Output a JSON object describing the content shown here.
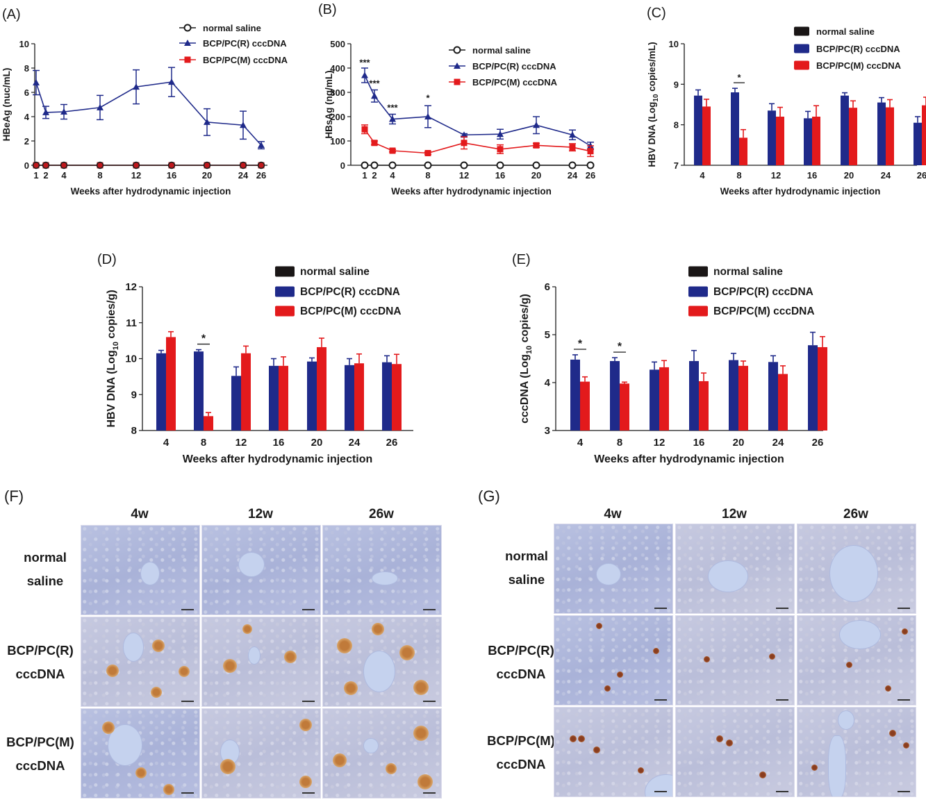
{
  "chart_data": [
    {
      "id": "A",
      "panel_label": "(A)",
      "type": "line",
      "xlabel": "Weeks after hydrodynamic injection",
      "ylabel": "HBeAg (nuc/mL)",
      "ylim": [
        0,
        10
      ],
      "yticks": [
        "0",
        "2",
        "4",
        "6",
        "8",
        "10"
      ],
      "x": [
        1,
        2,
        4,
        8,
        12,
        16,
        20,
        24,
        26
      ],
      "xticks": [
        "1",
        "2",
        "4",
        "8",
        "12",
        "16",
        "20",
        "24",
        "26"
      ],
      "series": [
        {
          "name": "normal saline",
          "color": "#1a1a1a",
          "marker": "open-circle",
          "values": [
            0,
            0,
            0,
            0,
            0,
            0,
            0,
            0,
            0
          ],
          "err": [
            0,
            0,
            0,
            0,
            0,
            0,
            0,
            0,
            0
          ]
        },
        {
          "name": "BCP/PC(R) cccDNA",
          "color": "#1f2a8a",
          "marker": "triangle",
          "values": [
            6.8,
            4.35,
            4.4,
            4.75,
            6.45,
            6.85,
            3.55,
            3.3,
            1.65
          ],
          "err": [
            1.0,
            0.5,
            0.6,
            1.0,
            1.4,
            1.2,
            1.1,
            1.15,
            0.3
          ]
        },
        {
          "name": "BCP/PC(M) cccDNA",
          "color": "#e31a1c",
          "marker": "square",
          "values": [
            0,
            0,
            0,
            0,
            0,
            0,
            0,
            0,
            0
          ],
          "err": [
            0,
            0,
            0,
            0,
            0,
            0,
            0,
            0,
            0
          ]
        }
      ],
      "annotations": []
    },
    {
      "id": "B",
      "panel_label": "(B)",
      "type": "line",
      "xlabel": "Weeks after hydrodynamic injection",
      "ylabel": "HBsAg (ng/mL)",
      "ylim": [
        0,
        500
      ],
      "yticks": [
        "0",
        "100",
        "200",
        "300",
        "400",
        "500"
      ],
      "x": [
        1,
        2,
        4,
        8,
        12,
        16,
        20,
        24,
        26
      ],
      "xticks": [
        "1",
        "2",
        "4",
        "8",
        "12",
        "16",
        "20",
        "24",
        "26"
      ],
      "series": [
        {
          "name": "normal saline",
          "color": "#1a1a1a",
          "marker": "open-circle",
          "values": [
            0,
            0,
            0,
            0,
            0,
            0,
            0,
            0,
            0
          ],
          "err": [
            0,
            0,
            0,
            0,
            0,
            0,
            0,
            0,
            0
          ]
        },
        {
          "name": "BCP/PC(R) cccDNA",
          "color": "#1f2a8a",
          "marker": "triangle",
          "values": [
            370,
            285,
            190,
            200,
            125,
            128,
            165,
            125,
            80
          ],
          "err": [
            30,
            25,
            20,
            45,
            5,
            20,
            35,
            20,
            15
          ]
        },
        {
          "name": "BCP/PC(M) cccDNA",
          "color": "#e31a1c",
          "marker": "square",
          "values": [
            148,
            92,
            60,
            50,
            92,
            66,
            82,
            74,
            58
          ],
          "err": [
            18,
            8,
            5,
            5,
            25,
            18,
            8,
            15,
            22
          ]
        }
      ],
      "annotations": [
        {
          "text": "***",
          "x": 1,
          "y": 410
        },
        {
          "text": "***",
          "x": 2,
          "y": 325
        },
        {
          "text": "***",
          "x": 4,
          "y": 225
        },
        {
          "text": "*",
          "x": 8,
          "y": 265
        }
      ]
    },
    {
      "id": "C",
      "panel_label": "(C)",
      "type": "bar",
      "xlabel": "Weeks after hydrodynamic injection",
      "ylabel_parts": [
        "HBV DNA (Log",
        "10",
        " copies/mL)"
      ],
      "ylim": [
        7,
        10
      ],
      "yticks": [
        "7",
        "8",
        "9",
        "10"
      ],
      "categories": [
        "4",
        "8",
        "12",
        "16",
        "20",
        "24",
        "26"
      ],
      "series": [
        {
          "name": "normal saline",
          "color": "#1a1616",
          "values": [
            0,
            0,
            0,
            0,
            0,
            0,
            0
          ],
          "err": [
            0,
            0,
            0,
            0,
            0,
            0,
            0
          ]
        },
        {
          "name": "BCP/PC(R) cccDNA",
          "color": "#1f2a8a",
          "values": [
            8.72,
            8.8,
            8.35,
            8.16,
            8.72,
            8.55,
            8.05
          ],
          "err": [
            0.14,
            0.1,
            0.17,
            0.17,
            0.07,
            0.12,
            0.15
          ]
        },
        {
          "name": "BCP/PC(M) cccDNA",
          "color": "#e31a1c",
          "values": [
            8.45,
            7.68,
            8.2,
            8.2,
            8.42,
            8.43,
            8.48
          ],
          "err": [
            0.18,
            0.2,
            0.23,
            0.27,
            0.17,
            0.19,
            0.2
          ]
        }
      ],
      "annotations": [
        {
          "text": "*",
          "category": "8"
        }
      ]
    },
    {
      "id": "D",
      "panel_label": "(D)",
      "type": "bar",
      "xlabel": "Weeks after hydrodynamic injection",
      "ylabel_parts": [
        "HBV DNA (Log",
        "10",
        " copies/g)"
      ],
      "ylim": [
        8,
        12
      ],
      "yticks": [
        "8",
        "9",
        "10",
        "11",
        "12"
      ],
      "categories": [
        "4",
        "8",
        "12",
        "16",
        "20",
        "24",
        "26"
      ],
      "series": [
        {
          "name": "normal saline",
          "color": "#1a1616",
          "values": [
            0,
            0,
            0,
            0,
            0,
            0,
            0
          ],
          "err": [
            0,
            0,
            0,
            0,
            0,
            0,
            0
          ]
        },
        {
          "name": "BCP/PC(R) cccDNA",
          "color": "#1f2a8a",
          "values": [
            10.15,
            10.2,
            9.52,
            9.8,
            9.92,
            9.82,
            9.9
          ],
          "err": [
            0.08,
            0.05,
            0.25,
            0.2,
            0.1,
            0.18,
            0.18
          ]
        },
        {
          "name": "BCP/PC(M) cccDNA",
          "color": "#e31a1c",
          "values": [
            10.6,
            8.4,
            10.15,
            9.8,
            10.32,
            9.87,
            9.85
          ],
          "err": [
            0.15,
            0.1,
            0.2,
            0.25,
            0.25,
            0.26,
            0.27
          ]
        }
      ],
      "annotations": [
        {
          "text": "*",
          "category": "8"
        }
      ]
    },
    {
      "id": "E",
      "panel_label": "(E)",
      "type": "bar",
      "xlabel": "Weeks after hydrodynamic injection",
      "ylabel_parts": [
        "cccDNA (Log",
        "10",
        " copies/g)"
      ],
      "ylim": [
        3,
        6
      ],
      "yticks": [
        "3",
        "4",
        "5",
        "6"
      ],
      "categories": [
        "4",
        "8",
        "12",
        "16",
        "20",
        "24",
        "26"
      ],
      "series": [
        {
          "name": "normal saline",
          "color": "#1a1616",
          "values": [
            0,
            0,
            0,
            0,
            0,
            0,
            0
          ],
          "err": [
            0,
            0,
            0,
            0,
            0,
            0,
            0
          ]
        },
        {
          "name": "BCP/PC(R) cccDNA",
          "color": "#1f2a8a",
          "values": [
            4.48,
            4.45,
            4.27,
            4.45,
            4.47,
            4.43,
            4.78
          ],
          "err": [
            0.1,
            0.07,
            0.16,
            0.22,
            0.14,
            0.13,
            0.27
          ]
        },
        {
          "name": "BCP/PC(M) cccDNA",
          "color": "#e31a1c",
          "values": [
            4.02,
            3.98,
            4.32,
            4.03,
            4.35,
            4.18,
            4.74
          ],
          "err": [
            0.1,
            0.03,
            0.14,
            0.17,
            0.1,
            0.17,
            0.22
          ]
        }
      ],
      "annotations": [
        {
          "text": "*",
          "category": "4"
        },
        {
          "text": "*",
          "category": "8"
        }
      ]
    }
  ],
  "figure_F": {
    "panel_label": "(F)",
    "columns": [
      "4w",
      "12w",
      "26w"
    ],
    "rows": [
      {
        "line1": "normal",
        "line2": "saline"
      },
      {
        "line1": "BCP/PC(R)",
        "line2": "cccDNA"
      },
      {
        "line1": "BCP/PC(M)",
        "line2": "cccDNA"
      }
    ]
  },
  "figure_G": {
    "panel_label": "(G)",
    "columns": [
      "4w",
      "12w",
      "26w"
    ],
    "rows": [
      {
        "line1": "normal",
        "line2": "saline"
      },
      {
        "line1": "BCP/PC(R)",
        "line2": "cccDNA"
      },
      {
        "line1": "BCP/PC(M)",
        "line2": "cccDNA"
      }
    ]
  }
}
